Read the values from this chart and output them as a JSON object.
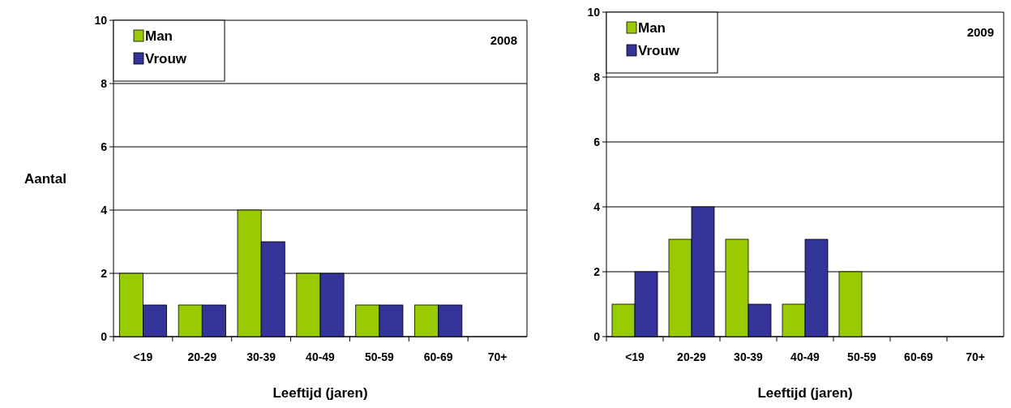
{
  "chart_data": [
    {
      "type": "bar",
      "title": "2008",
      "xlabel": "Leeftijd (jaren)",
      "ylabel": "Aantal",
      "categories": [
        "<19",
        "20-29",
        "30-39",
        "40-49",
        "50-59",
        "60-69",
        "70+"
      ],
      "series": [
        {
          "name": "Man",
          "color": "#99cc00",
          "values": [
            2,
            1,
            4,
            2,
            1,
            1,
            0
          ]
        },
        {
          "name": "Vrouw",
          "color": "#333399",
          "values": [
            1,
            1,
            3,
            2,
            1,
            1,
            0
          ]
        }
      ],
      "ylim": [
        0,
        10
      ],
      "yticks": [
        0,
        2,
        4,
        6,
        8,
        10
      ],
      "grid": "y",
      "legend": "top left"
    },
    {
      "type": "bar",
      "title": "2009",
      "xlabel": "Leeftijd (jaren)",
      "categories": [
        "<19",
        "20-29",
        "30-39",
        "40-49",
        "50-59",
        "60-69",
        "70+"
      ],
      "series": [
        {
          "name": "Man",
          "color": "#99cc00",
          "values": [
            1,
            3,
            3,
            1,
            2,
            0,
            0
          ]
        },
        {
          "name": "Vrouw",
          "color": "#333399",
          "values": [
            2,
            4,
            1,
            3,
            0,
            0,
            0
          ]
        }
      ],
      "ylim": [
        0,
        10
      ],
      "yticks": [
        0,
        2,
        4,
        6,
        8,
        10
      ],
      "grid": "y",
      "legend": "top left"
    }
  ]
}
